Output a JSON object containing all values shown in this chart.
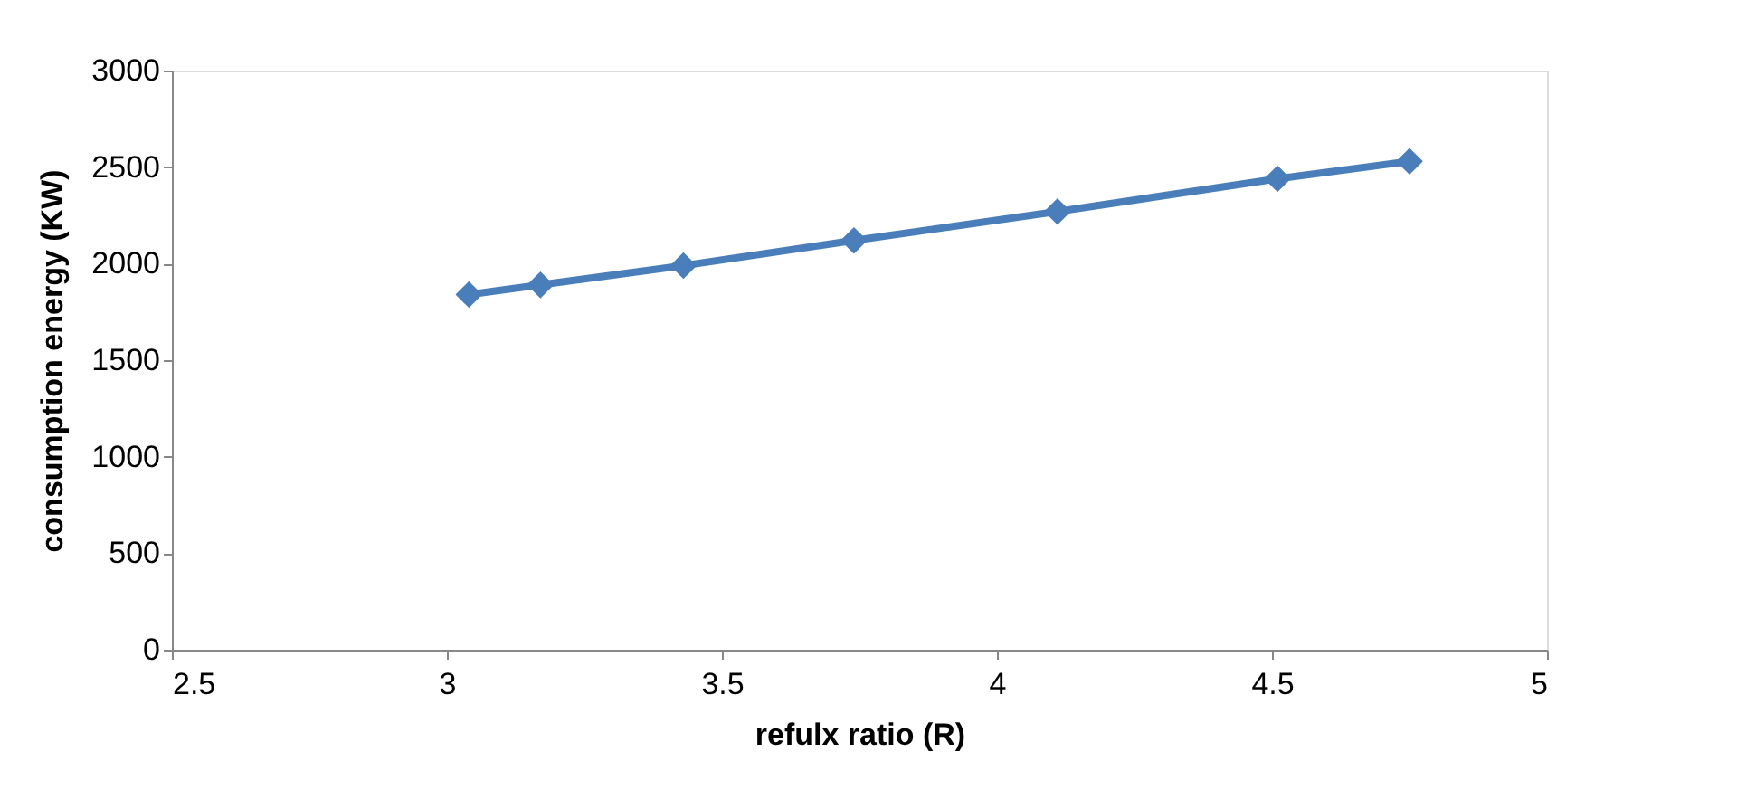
{
  "chart_data": {
    "type": "line",
    "xlabel": "refulx ratio (R)",
    "ylabel": "consumption energy (KW)",
    "x": [
      3.04,
      3.17,
      3.43,
      3.74,
      4.11,
      4.51,
      4.75
    ],
    "series": [
      {
        "color": "#4a7ebb",
        "values": [
          1840,
          1890,
          1990,
          2120,
          2270,
          2440,
          2530
        ]
      }
    ],
    "xlim": [
      2.5,
      5
    ],
    "xticks": [
      2.5,
      3,
      3.5,
      4,
      4.5,
      5
    ],
    "ylim": [
      0,
      3000
    ],
    "yticks": [
      0,
      500,
      1000,
      1500,
      2000,
      2500,
      3000
    ],
    "grid": false,
    "marker": "diamond",
    "line_style": "solid"
  }
}
